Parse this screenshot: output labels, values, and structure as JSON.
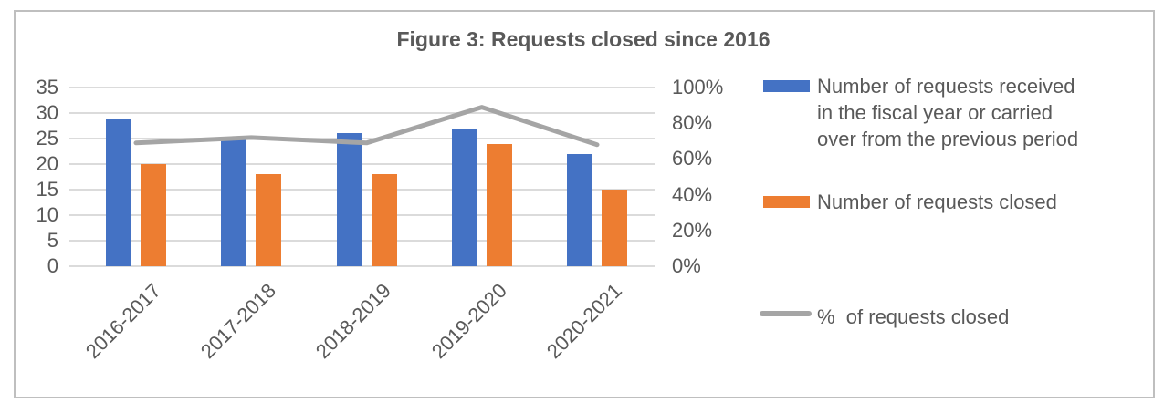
{
  "title": "Figure 3: Requests closed since 2016",
  "colors": {
    "received_bar": "#4472C4",
    "closed_bar": "#ED7D31",
    "percent_line": "#A5A5A5",
    "gridline": "#DBDBDB",
    "text": "#595959",
    "frame_border": "#BFBFBF"
  },
  "chart_data": {
    "type": "bar",
    "title": "Figure 3: Requests closed since 2016",
    "categories": [
      "2016-2017",
      "2017-2018",
      "2018-2019",
      "2019-2020",
      "2020-2021"
    ],
    "series": [
      {
        "name": "Number of requests received in the fiscal year or carried over from the previous period",
        "type": "bar",
        "axis": "left",
        "color": "#4472C4",
        "values": [
          29,
          25,
          26,
          27,
          22
        ]
      },
      {
        "name": "Number of requests closed",
        "type": "bar",
        "axis": "left",
        "color": "#ED7D31",
        "values": [
          20,
          18,
          18,
          24,
          15
        ]
      },
      {
        "name": "%  of requests closed",
        "type": "line",
        "axis": "right",
        "color": "#A5A5A5",
        "unit": "%",
        "values": [
          69,
          72,
          69,
          89,
          68
        ]
      }
    ],
    "left_axis": {
      "min": 0,
      "max": 35,
      "ticks": [
        35,
        30,
        25,
        20,
        15,
        10,
        5,
        0
      ]
    },
    "right_axis": {
      "min": 0,
      "max": 100,
      "tick_labels": [
        "100%",
        "80%",
        "60%",
        "40%",
        "20%",
        "0%"
      ],
      "tick_values": [
        100,
        80,
        60,
        40,
        20,
        0
      ]
    },
    "grid": true,
    "legend_position": "right",
    "xlabel": "",
    "ylabel": ""
  },
  "legend": {
    "items": [
      {
        "id": "received",
        "swatch": "bar",
        "color": "#4472C4",
        "lines": [
          "Number of requests received",
          "in the fiscal year or carried",
          "over from the previous period"
        ]
      },
      {
        "id": "closed",
        "swatch": "bar",
        "color": "#ED7D31",
        "lines": [
          "Number of requests closed"
        ]
      },
      {
        "id": "percent-closed",
        "swatch": "line",
        "color": "#A5A5A5",
        "lines": [
          "%  of requests closed"
        ]
      }
    ]
  }
}
